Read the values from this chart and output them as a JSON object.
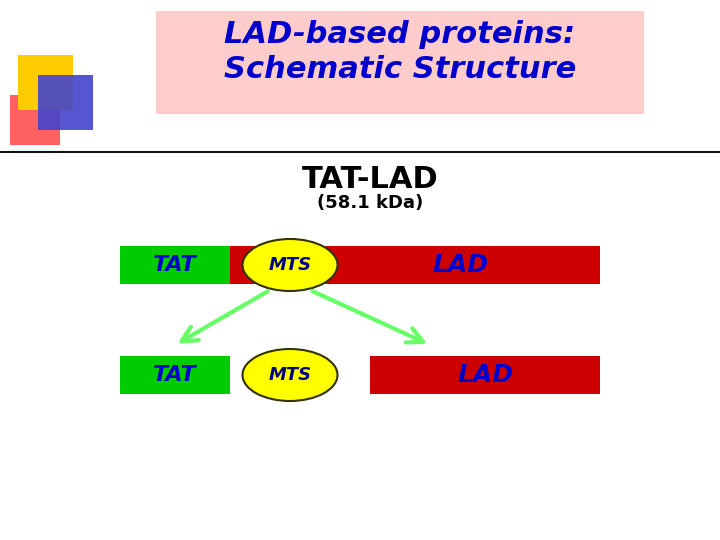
{
  "bg_color": "#ffffff",
  "title_box_color": "#ffcccc",
  "title_text": "LAD-based proteins:\nSchematic Structure",
  "title_text_color": "#0000cc",
  "subtitle_text": "TAT-LAD",
  "subtitle_color": "#000000",
  "sub2_text": "(58.1 kDa)",
  "sub2_color": "#000000",
  "tat_color": "#00cc00",
  "tat_text_color": "#0000cc",
  "mts_color": "#ffff00",
  "mts_text_color": "#000080",
  "lad_color": "#cc0000",
  "lad_text_color": "#0000cc",
  "arrow_color": "#66ff66",
  "decor_yellow": "#ffcc00",
  "decor_red": "#ff4444",
  "decor_blue": "#4444cc"
}
